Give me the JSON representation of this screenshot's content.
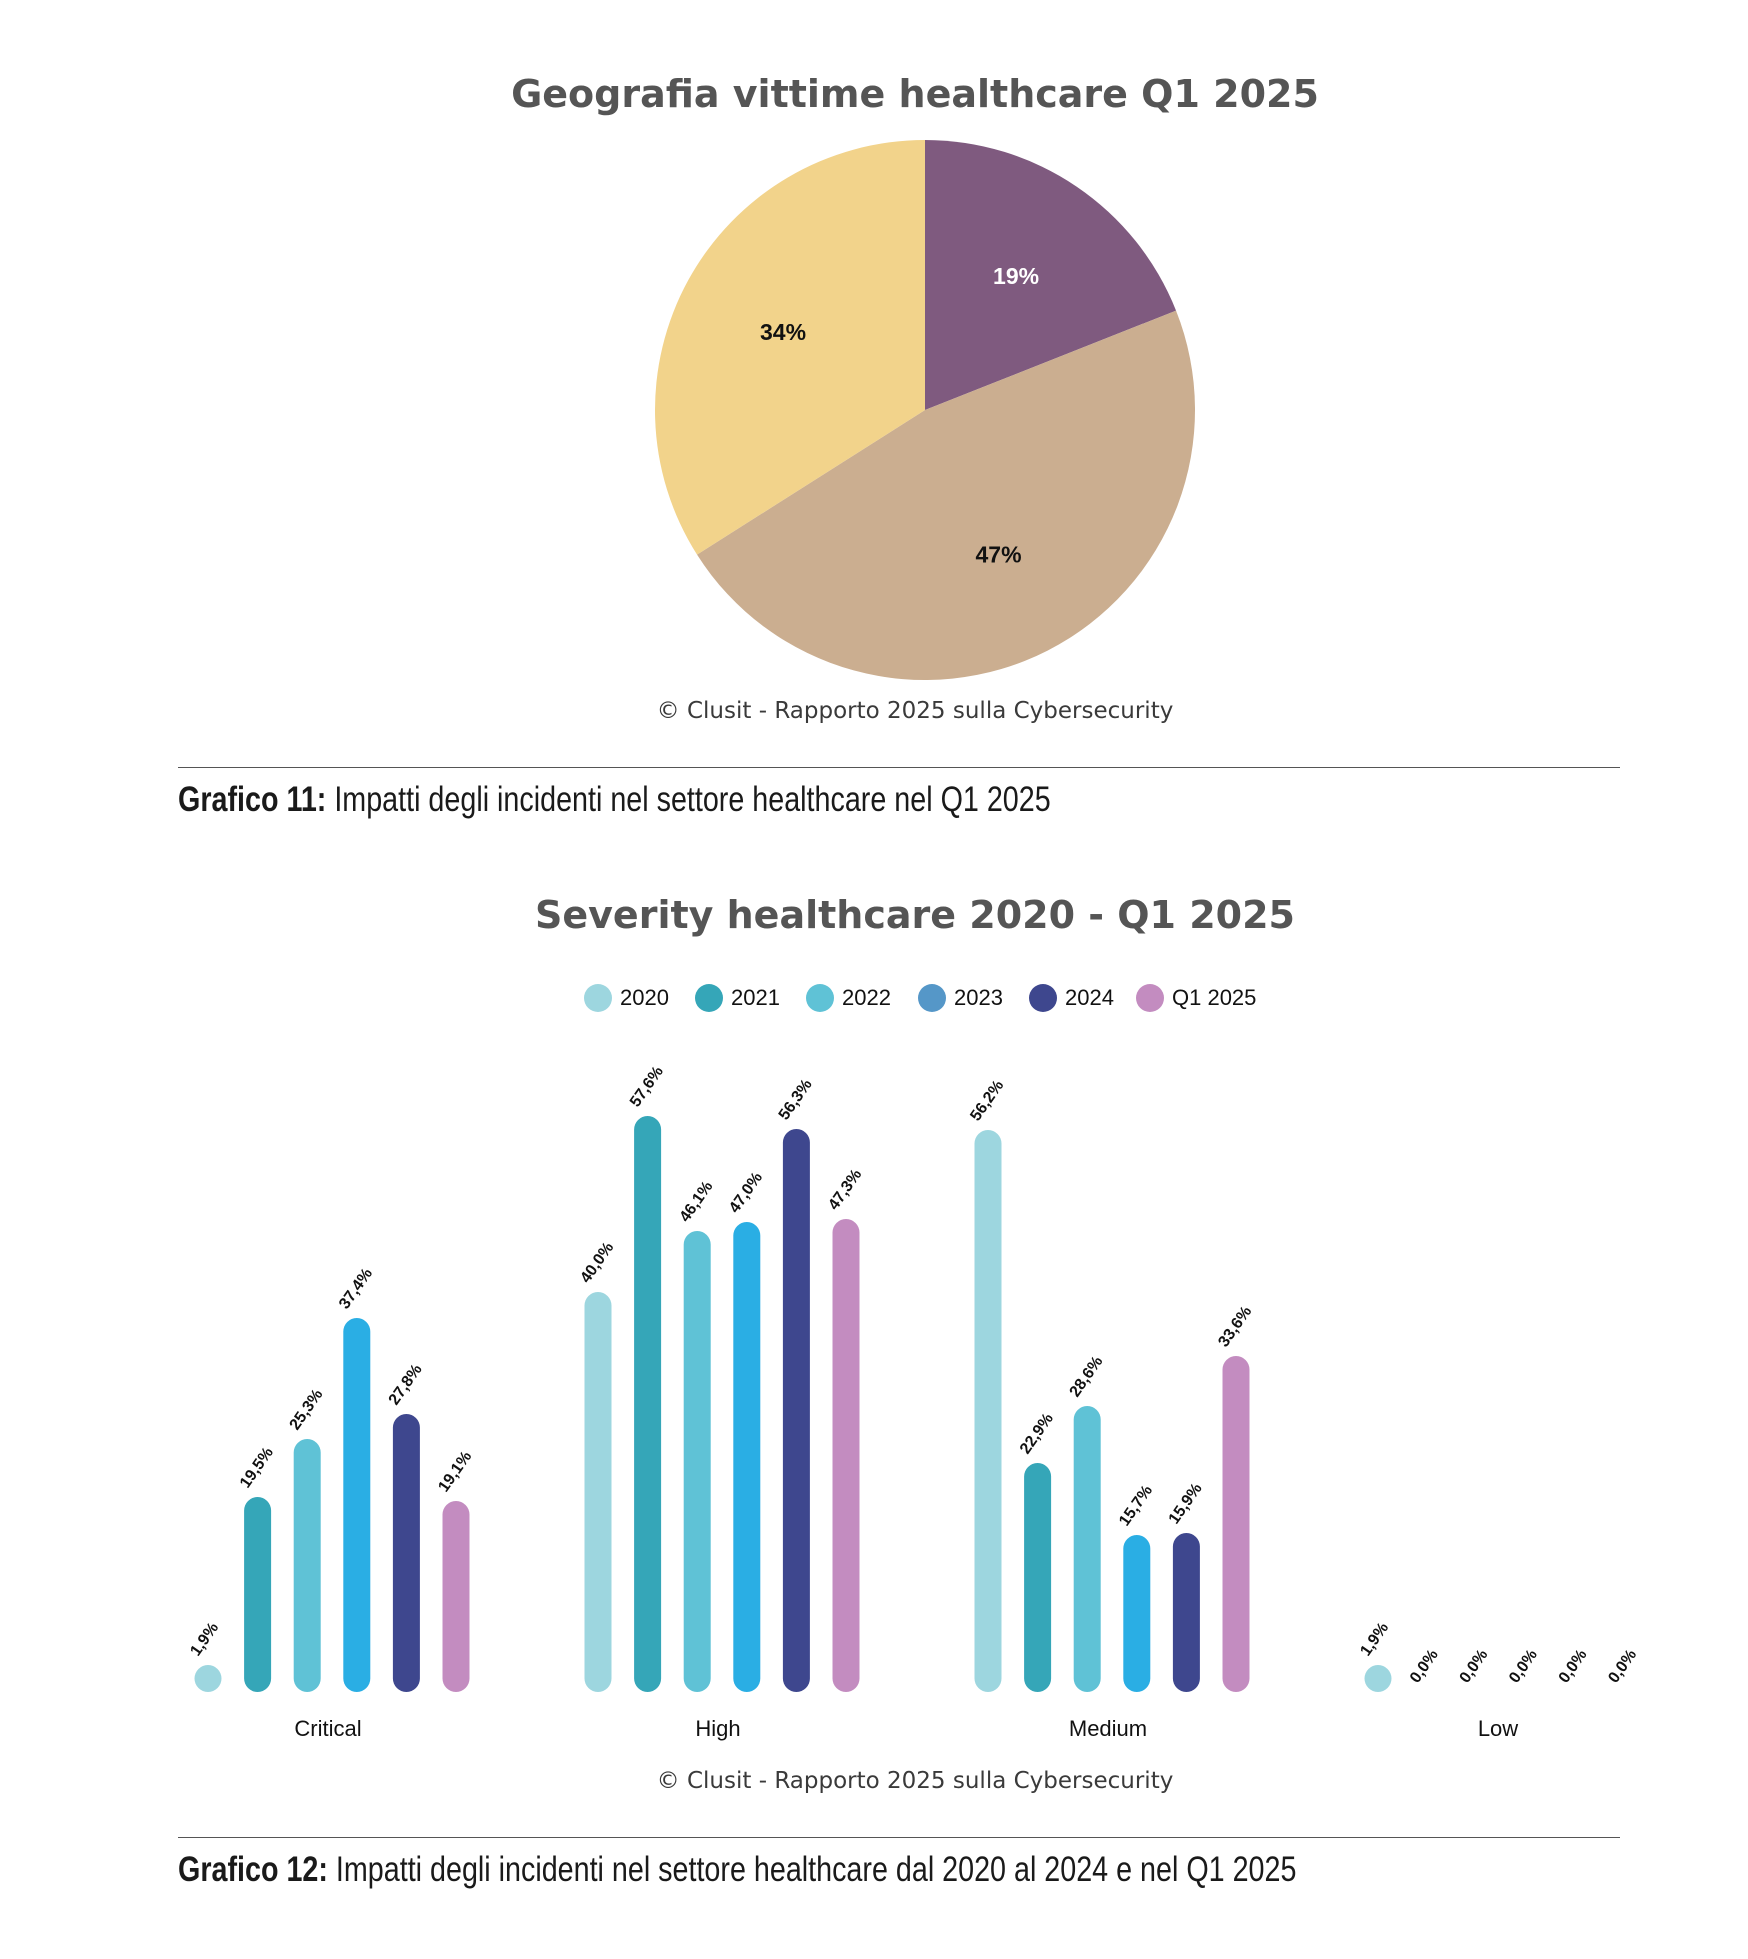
{
  "chart_data": [
    {
      "type": "pie",
      "title": "Geografia vittime healthcare Q1 2025",
      "slices": [
        {
          "value": 19,
          "label": "19%",
          "color": "#7f5a7f",
          "label_color": "#ffffff"
        },
        {
          "value": 47,
          "label": "47%",
          "color": "#cbae90",
          "label_color": "#111111"
        },
        {
          "value": 34,
          "label": "34%",
          "color": "#f2d38b",
          "label_color": "#111111"
        }
      ],
      "source": "© Clusit - Rapporto 2025 sulla Cybersecurity"
    },
    {
      "type": "bar",
      "title": "Severity healthcare 2020 - Q1 2025",
      "categories": [
        "Critical",
        "High",
        "Medium",
        "Low"
      ],
      "series": [
        {
          "name": "2020",
          "color": "#9dd6df",
          "values": [
            1.9,
            40.0,
            56.2,
            1.9
          ],
          "labels": [
            "1,9%",
            "40,0%",
            "56,2%",
            "1,9%"
          ]
        },
        {
          "name": "2021",
          "color": "#35a6b8",
          "values": [
            19.5,
            57.6,
            22.9,
            0.0
          ],
          "labels": [
            "19,5%",
            "57,6%",
            "22,9%",
            "0,0%"
          ]
        },
        {
          "name": "2022",
          "color": "#5fc2d6",
          "values": [
            25.3,
            46.1,
            28.6,
            0.0
          ],
          "labels": [
            "25,3%",
            "46,1%",
            "28,6%",
            "0,0%"
          ]
        },
        {
          "name": "2023",
          "color": "#2aaee4",
          "values": [
            37.4,
            47.0,
            15.7,
            0.0
          ],
          "labels": [
            "37,4%",
            "47,0%",
            "15,7%",
            "0,0%"
          ]
        },
        {
          "name": "2024",
          "color": "#3e478e",
          "values": [
            27.8,
            56.3,
            15.9,
            0.0
          ],
          "labels": [
            "27,8%",
            "56,3%",
            "15,9%",
            "0,0%"
          ]
        },
        {
          "name": "Q1 2025",
          "color": "#c38cc0",
          "values": [
            19.1,
            47.3,
            33.6,
            0.0
          ],
          "labels": [
            "19,1%",
            "47,3%",
            "33,6%",
            "0,0%"
          ]
        }
      ],
      "legend_colors": [
        "#9dd6df",
        "#35a6b8",
        "#5fc2d6",
        "#5597c8",
        "#3e478e",
        "#c38cc0"
      ],
      "ylim": [
        0,
        60
      ],
      "legend_position": "top-center",
      "source": "© Clusit - Rapporto 2025 sulla Cybersecurity"
    }
  ],
  "captions": {
    "graph11_label": "Grafico 11:",
    "graph11_text": " Impatti degli incidenti nel settore healthcare nel  Q1 2025",
    "graph12_label": "Grafico 12:",
    "graph12_text": " Impatti degli incidenti nel settore healthcare dal 2020 al 2024 e nel  Q1 2025"
  }
}
